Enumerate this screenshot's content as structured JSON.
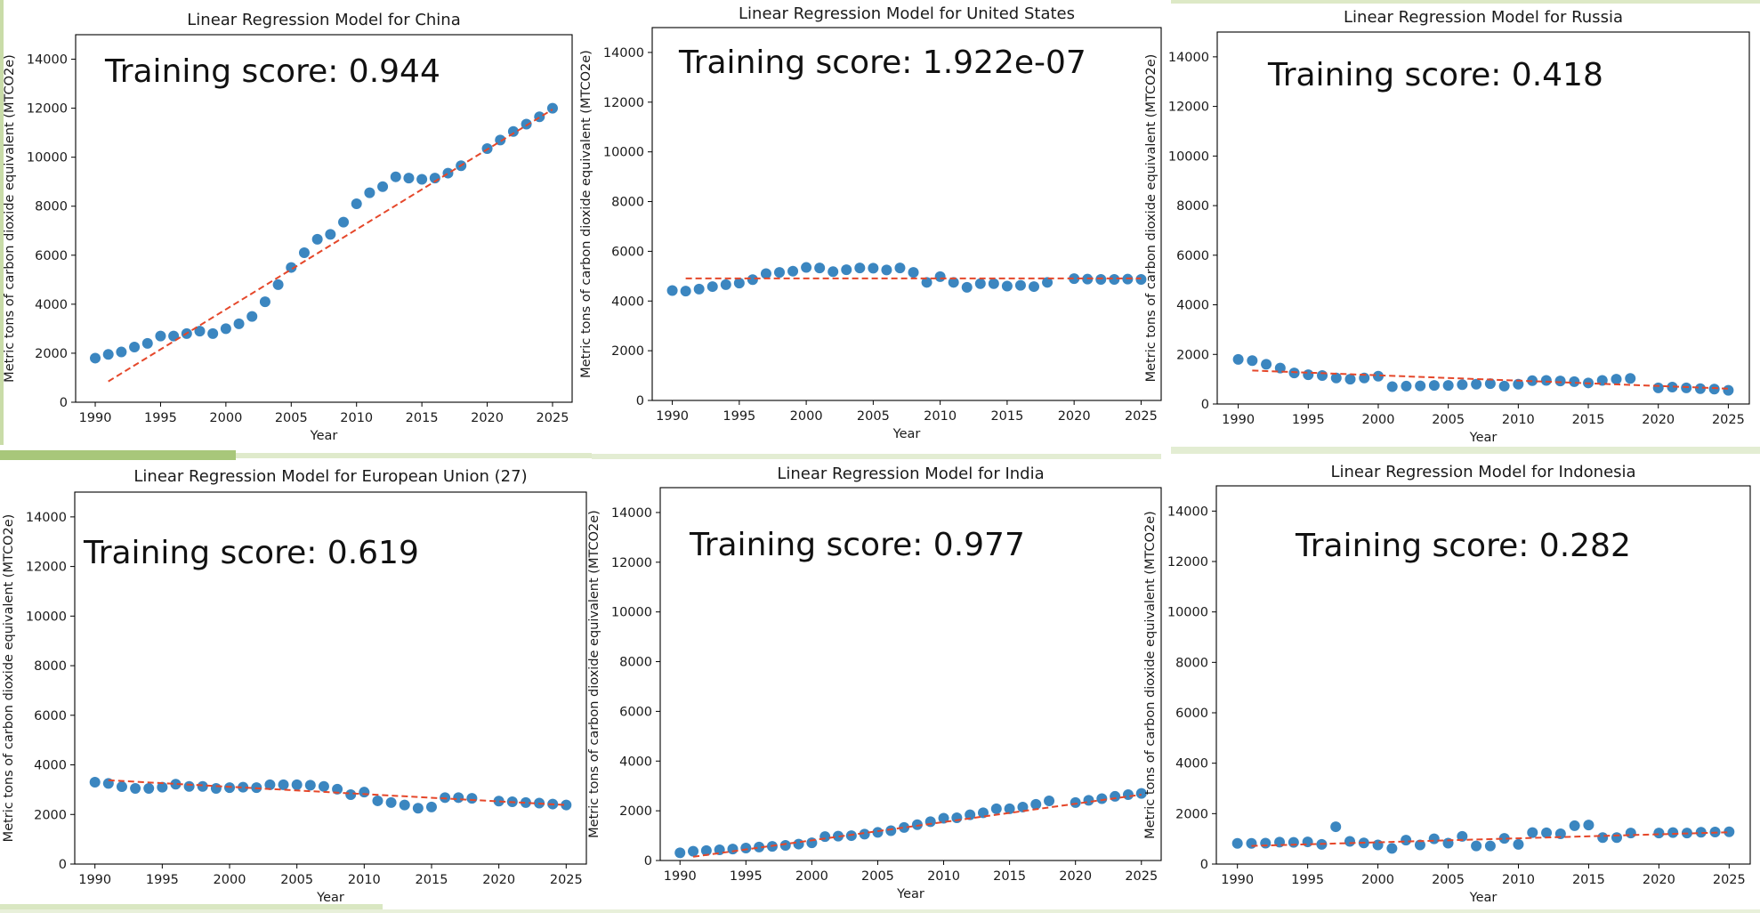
{
  "colors": {
    "points": "#3b86c0",
    "fit_line": "#e5472a",
    "axes": "#000000"
  },
  "chart_data": [
    {
      "type": "scatter",
      "title": "Linear Regression Model for China",
      "xlabel": "Year",
      "ylabel": "Metric tons of carbon dioxide equivalent (MTCO2e)",
      "xlim": [
        1988.5,
        2026.5
      ],
      "ylim": [
        0,
        15000
      ],
      "xticks": [
        1990,
        1995,
        2000,
        2005,
        2010,
        2015,
        2020,
        2025
      ],
      "yticks": [
        0,
        2000,
        4000,
        6000,
        8000,
        10000,
        12000,
        14000
      ],
      "annotation": "Training score: 0.944",
      "x": [
        1990,
        1991,
        1992,
        1993,
        1994,
        1995,
        1996,
        1997,
        1998,
        1999,
        2000,
        2001,
        2002,
        2003,
        2004,
        2005,
        2006,
        2007,
        2008,
        2009,
        2010,
        2011,
        2012,
        2013,
        2014,
        2015,
        2016,
        2017,
        2018,
        2020,
        2021,
        2022,
        2023,
        2024,
        2025
      ],
      "y": [
        1800,
        1950,
        2050,
        2250,
        2400,
        2700,
        2700,
        2800,
        2900,
        2800,
        3000,
        3200,
        3500,
        4100,
        4800,
        5500,
        6100,
        6650,
        6850,
        7350,
        8100,
        8550,
        8800,
        9200,
        9150,
        9100,
        9150,
        9350,
        9650,
        10350,
        10700,
        11050,
        11350,
        11650,
        12000
      ],
      "fit": {
        "x": [
          1991,
          2025
        ],
        "y": [
          850,
          11950
        ]
      },
      "grid": false
    },
    {
      "type": "scatter",
      "title": "Linear Regression Model for United States",
      "xlabel": "Year",
      "ylabel": "Metric tons of carbon dioxide equivalent (MTCO2e)",
      "xlim": [
        1988.5,
        2026.5
      ],
      "ylim": [
        0,
        15000
      ],
      "xticks": [
        1990,
        1995,
        2000,
        2005,
        2010,
        2015,
        2020,
        2025
      ],
      "yticks": [
        0,
        2000,
        4000,
        6000,
        8000,
        10000,
        12000,
        14000
      ],
      "annotation": "Training score: 1.922e-07",
      "x": [
        1990,
        1991,
        1992,
        1993,
        1994,
        1995,
        1996,
        1997,
        1998,
        1999,
        2000,
        2001,
        2002,
        2003,
        2004,
        2005,
        2006,
        2007,
        2008,
        2009,
        2010,
        2011,
        2012,
        2013,
        2014,
        2015,
        2016,
        2017,
        2018,
        2020,
        2021,
        2022,
        2023,
        2024,
        2025
      ],
      "y": [
        4420,
        4400,
        4480,
        4580,
        4660,
        4720,
        4860,
        5100,
        5150,
        5200,
        5350,
        5330,
        5180,
        5260,
        5330,
        5320,
        5250,
        5330,
        5150,
        4750,
        4980,
        4750,
        4550,
        4700,
        4700,
        4600,
        4630,
        4580,
        4750,
        4900,
        4880,
        4870,
        4870,
        4880,
        4870
      ],
      "fit": {
        "x": [
          1991,
          2025
        ],
        "y": [
          4910,
          4910
        ]
      },
      "grid": false
    },
    {
      "type": "scatter",
      "title": "Linear Regression Model for Russia",
      "xlabel": "Year",
      "ylabel": "Metric tons of carbon dioxide equivalent (MTCO2e)",
      "xlim": [
        1988.5,
        2026.5
      ],
      "ylim": [
        0,
        15000
      ],
      "xticks": [
        1990,
        1995,
        2000,
        2005,
        2010,
        2015,
        2020,
        2025
      ],
      "yticks": [
        0,
        2000,
        4000,
        6000,
        8000,
        10000,
        12000,
        14000
      ],
      "annotation": "Training score: 0.418",
      "x": [
        1990,
        1991,
        1992,
        1993,
        1994,
        1995,
        1996,
        1997,
        1998,
        1999,
        2000,
        2001,
        2002,
        2003,
        2004,
        2005,
        2006,
        2007,
        2008,
        2009,
        2010,
        2011,
        2012,
        2013,
        2014,
        2015,
        2016,
        2017,
        2018,
        2020,
        2021,
        2022,
        2023,
        2024,
        2025
      ],
      "y": [
        1800,
        1750,
        1600,
        1450,
        1250,
        1180,
        1150,
        1050,
        1000,
        1050,
        1120,
        700,
        720,
        730,
        750,
        750,
        780,
        800,
        820,
        720,
        800,
        940,
        950,
        930,
        900,
        850,
        950,
        1000,
        1030,
        650,
        680,
        650,
        620,
        600,
        550
      ],
      "fit": {
        "x": [
          1991,
          2025
        ],
        "y": [
          1350,
          620
        ]
      },
      "grid": false
    },
    {
      "type": "scatter",
      "title": "Linear Regression Model for European Union (27)",
      "xlabel": "Year",
      "ylabel": "Metric tons of carbon dioxide equivalent (MTCO2e)",
      "xlim": [
        1988.5,
        2026.5
      ],
      "ylim": [
        0,
        15000
      ],
      "xticks": [
        1990,
        1995,
        2000,
        2005,
        2010,
        2015,
        2020,
        2025
      ],
      "yticks": [
        0,
        2000,
        4000,
        6000,
        8000,
        10000,
        12000,
        14000
      ],
      "annotation": "Training score: 0.619",
      "x": [
        1990,
        1991,
        1992,
        1993,
        1994,
        1995,
        1996,
        1997,
        1998,
        1999,
        2000,
        2001,
        2002,
        2003,
        2004,
        2005,
        2006,
        2007,
        2008,
        2009,
        2010,
        2011,
        2012,
        2013,
        2014,
        2015,
        2016,
        2017,
        2018,
        2020,
        2021,
        2022,
        2023,
        2024,
        2025
      ],
      "y": [
        3300,
        3250,
        3120,
        3050,
        3050,
        3100,
        3220,
        3130,
        3130,
        3050,
        3080,
        3100,
        3080,
        3200,
        3200,
        3200,
        3180,
        3130,
        3020,
        2800,
        2900,
        2550,
        2480,
        2380,
        2250,
        2300,
        2680,
        2680,
        2650,
        2540,
        2510,
        2480,
        2460,
        2420,
        2380
      ],
      "fit": {
        "x": [
          1991,
          2025
        ],
        "y": [
          3380,
          2380
        ]
      },
      "grid": false
    },
    {
      "type": "scatter",
      "title": "Linear Regression Model for India",
      "xlabel": "Year",
      "ylabel": "Metric tons of carbon dioxide equivalent (MTCO2e)",
      "xlim": [
        1988.5,
        2026.5
      ],
      "ylim": [
        0,
        15000
      ],
      "xticks": [
        1990,
        1995,
        2000,
        2005,
        2010,
        2015,
        2020,
        2025
      ],
      "yticks": [
        0,
        2000,
        4000,
        6000,
        8000,
        10000,
        12000,
        14000
      ],
      "annotation": "Training score: 0.977",
      "x": [
        1990,
        1991,
        1992,
        1993,
        1994,
        1995,
        1996,
        1997,
        1998,
        1999,
        2000,
        2001,
        2002,
        2003,
        2004,
        2005,
        2006,
        2007,
        2008,
        2009,
        2010,
        2011,
        2012,
        2013,
        2014,
        2015,
        2016,
        2017,
        2018,
        2020,
        2021,
        2022,
        2023,
        2024,
        2025
      ],
      "y": [
        310,
        370,
        400,
        430,
        460,
        500,
        540,
        570,
        610,
        660,
        710,
        960,
        980,
        1000,
        1060,
        1130,
        1200,
        1330,
        1440,
        1560,
        1700,
        1720,
        1840,
        1920,
        2080,
        2080,
        2150,
        2260,
        2400,
        2330,
        2420,
        2490,
        2580,
        2650,
        2700
      ],
      "fit": {
        "x": [
          1991,
          2025
        ],
        "y": [
          150,
          2650
        ]
      },
      "grid": false
    },
    {
      "type": "scatter",
      "title": "Linear Regression Model for Indonesia",
      "xlabel": "Year",
      "ylabel": "Metric tons of carbon dioxide equivalent (MTCO2e)",
      "xlim": [
        1988.5,
        2026.5
      ],
      "ylim": [
        0,
        15000
      ],
      "xticks": [
        1990,
        1995,
        2000,
        2005,
        2010,
        2015,
        2020,
        2025
      ],
      "yticks": [
        0,
        2000,
        4000,
        6000,
        8000,
        10000,
        12000,
        14000
      ],
      "annotation": "Training score: 0.282",
      "x": [
        1990,
        1991,
        1992,
        1993,
        1994,
        1995,
        1996,
        1997,
        1998,
        1999,
        2000,
        2001,
        2002,
        2003,
        2004,
        2005,
        2006,
        2007,
        2008,
        2009,
        2010,
        2011,
        2012,
        2013,
        2014,
        2015,
        2016,
        2017,
        2018,
        2020,
        2021,
        2022,
        2023,
        2024,
        2025
      ],
      "y": [
        820,
        820,
        830,
        870,
        860,
        880,
        780,
        1480,
        900,
        840,
        760,
        620,
        950,
        760,
        1000,
        830,
        1100,
        720,
        720,
        1020,
        780,
        1250,
        1240,
        1200,
        1520,
        1550,
        1050,
        1050,
        1230,
        1230,
        1250,
        1230,
        1260,
        1270,
        1280
      ],
      "fit": {
        "x": [
          1991,
          2025
        ],
        "y": [
          720,
          1260
        ]
      },
      "grid": false
    }
  ]
}
